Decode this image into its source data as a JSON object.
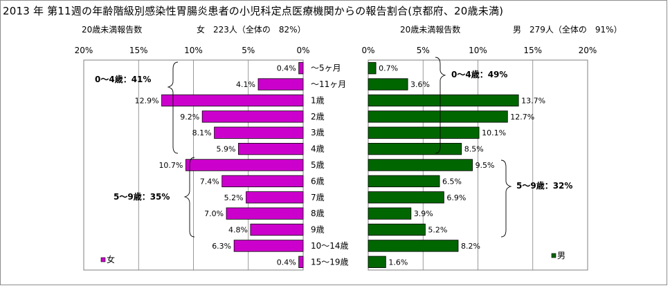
{
  "title": "2013 年 第11週の年齢階級別感染性胃腸炎患者の小児科定点医療機関からの報告割合(京都府、20歳未満)",
  "left_panel": {
    "caption": "20歳未満報告数",
    "summary": "女　223人（全体の　82%）",
    "annotation_0_4": "0～4歳：41%",
    "annotation_5_9": "5～9歳：35%",
    "legend": "女"
  },
  "right_panel": {
    "caption": "20歳未満報告数",
    "summary": "男　279人（全体の　91%）",
    "annotation_0_4": "0～4歳：49%",
    "annotation_5_9": "5～9歳：32%",
    "legend": "男"
  },
  "colors": {
    "female_bar": "#cc00cc",
    "male_bar": "#006600",
    "grid": "#7f7f7f"
  },
  "chart_data": [
    {
      "type": "bar",
      "name": "female",
      "orientation": "horizontal",
      "direction": "right-to-left",
      "categories": [
        "～5ヶ月",
        "～11ヶ月",
        "1歳",
        "2歳",
        "3歳",
        "4歳",
        "5歳",
        "6歳",
        "7歳",
        "8歳",
        "9歳",
        "10～14歳",
        "15～19歳"
      ],
      "values": [
        0.4,
        4.1,
        12.9,
        9.2,
        8.1,
        5.9,
        10.7,
        7.4,
        5.2,
        7.0,
        4.8,
        6.3,
        0.4
      ],
      "value_labels": [
        "0.4%",
        "4.1%",
        "12.9%",
        "9.2%",
        "8.1%",
        "5.9%",
        "10.7%",
        "7.4%",
        "5.2%",
        "7.0%",
        "4.8%",
        "6.3%",
        "0.4%"
      ],
      "xlim": [
        0,
        20
      ],
      "xticks": [
        "20%",
        "15%",
        "10%",
        "5%",
        "0%"
      ],
      "grid": true,
      "legend": "bottom-left"
    },
    {
      "type": "bar",
      "name": "male",
      "orientation": "horizontal",
      "direction": "left-to-right",
      "categories": [
        "～5ヶ月",
        "～11ヶ月",
        "1歳",
        "2歳",
        "3歳",
        "4歳",
        "5歳",
        "6歳",
        "7歳",
        "8歳",
        "9歳",
        "10～14歳",
        "15～19歳"
      ],
      "values": [
        0.7,
        3.6,
        13.7,
        12.7,
        10.1,
        8.5,
        9.5,
        6.5,
        6.9,
        3.9,
        5.2,
        8.2,
        1.6
      ],
      "value_labels": [
        "0.7%",
        "3.6%",
        "13.7%",
        "12.7%",
        "10.1%",
        "8.5%",
        "9.5%",
        "6.5%",
        "6.9%",
        "3.9%",
        "5.2%",
        "8.2%",
        "1.6%"
      ],
      "xlim": [
        0,
        20
      ],
      "xticks": [
        "0%",
        "5%",
        "10%",
        "15%",
        "20%"
      ],
      "grid": true,
      "legend": "bottom-right"
    }
  ]
}
